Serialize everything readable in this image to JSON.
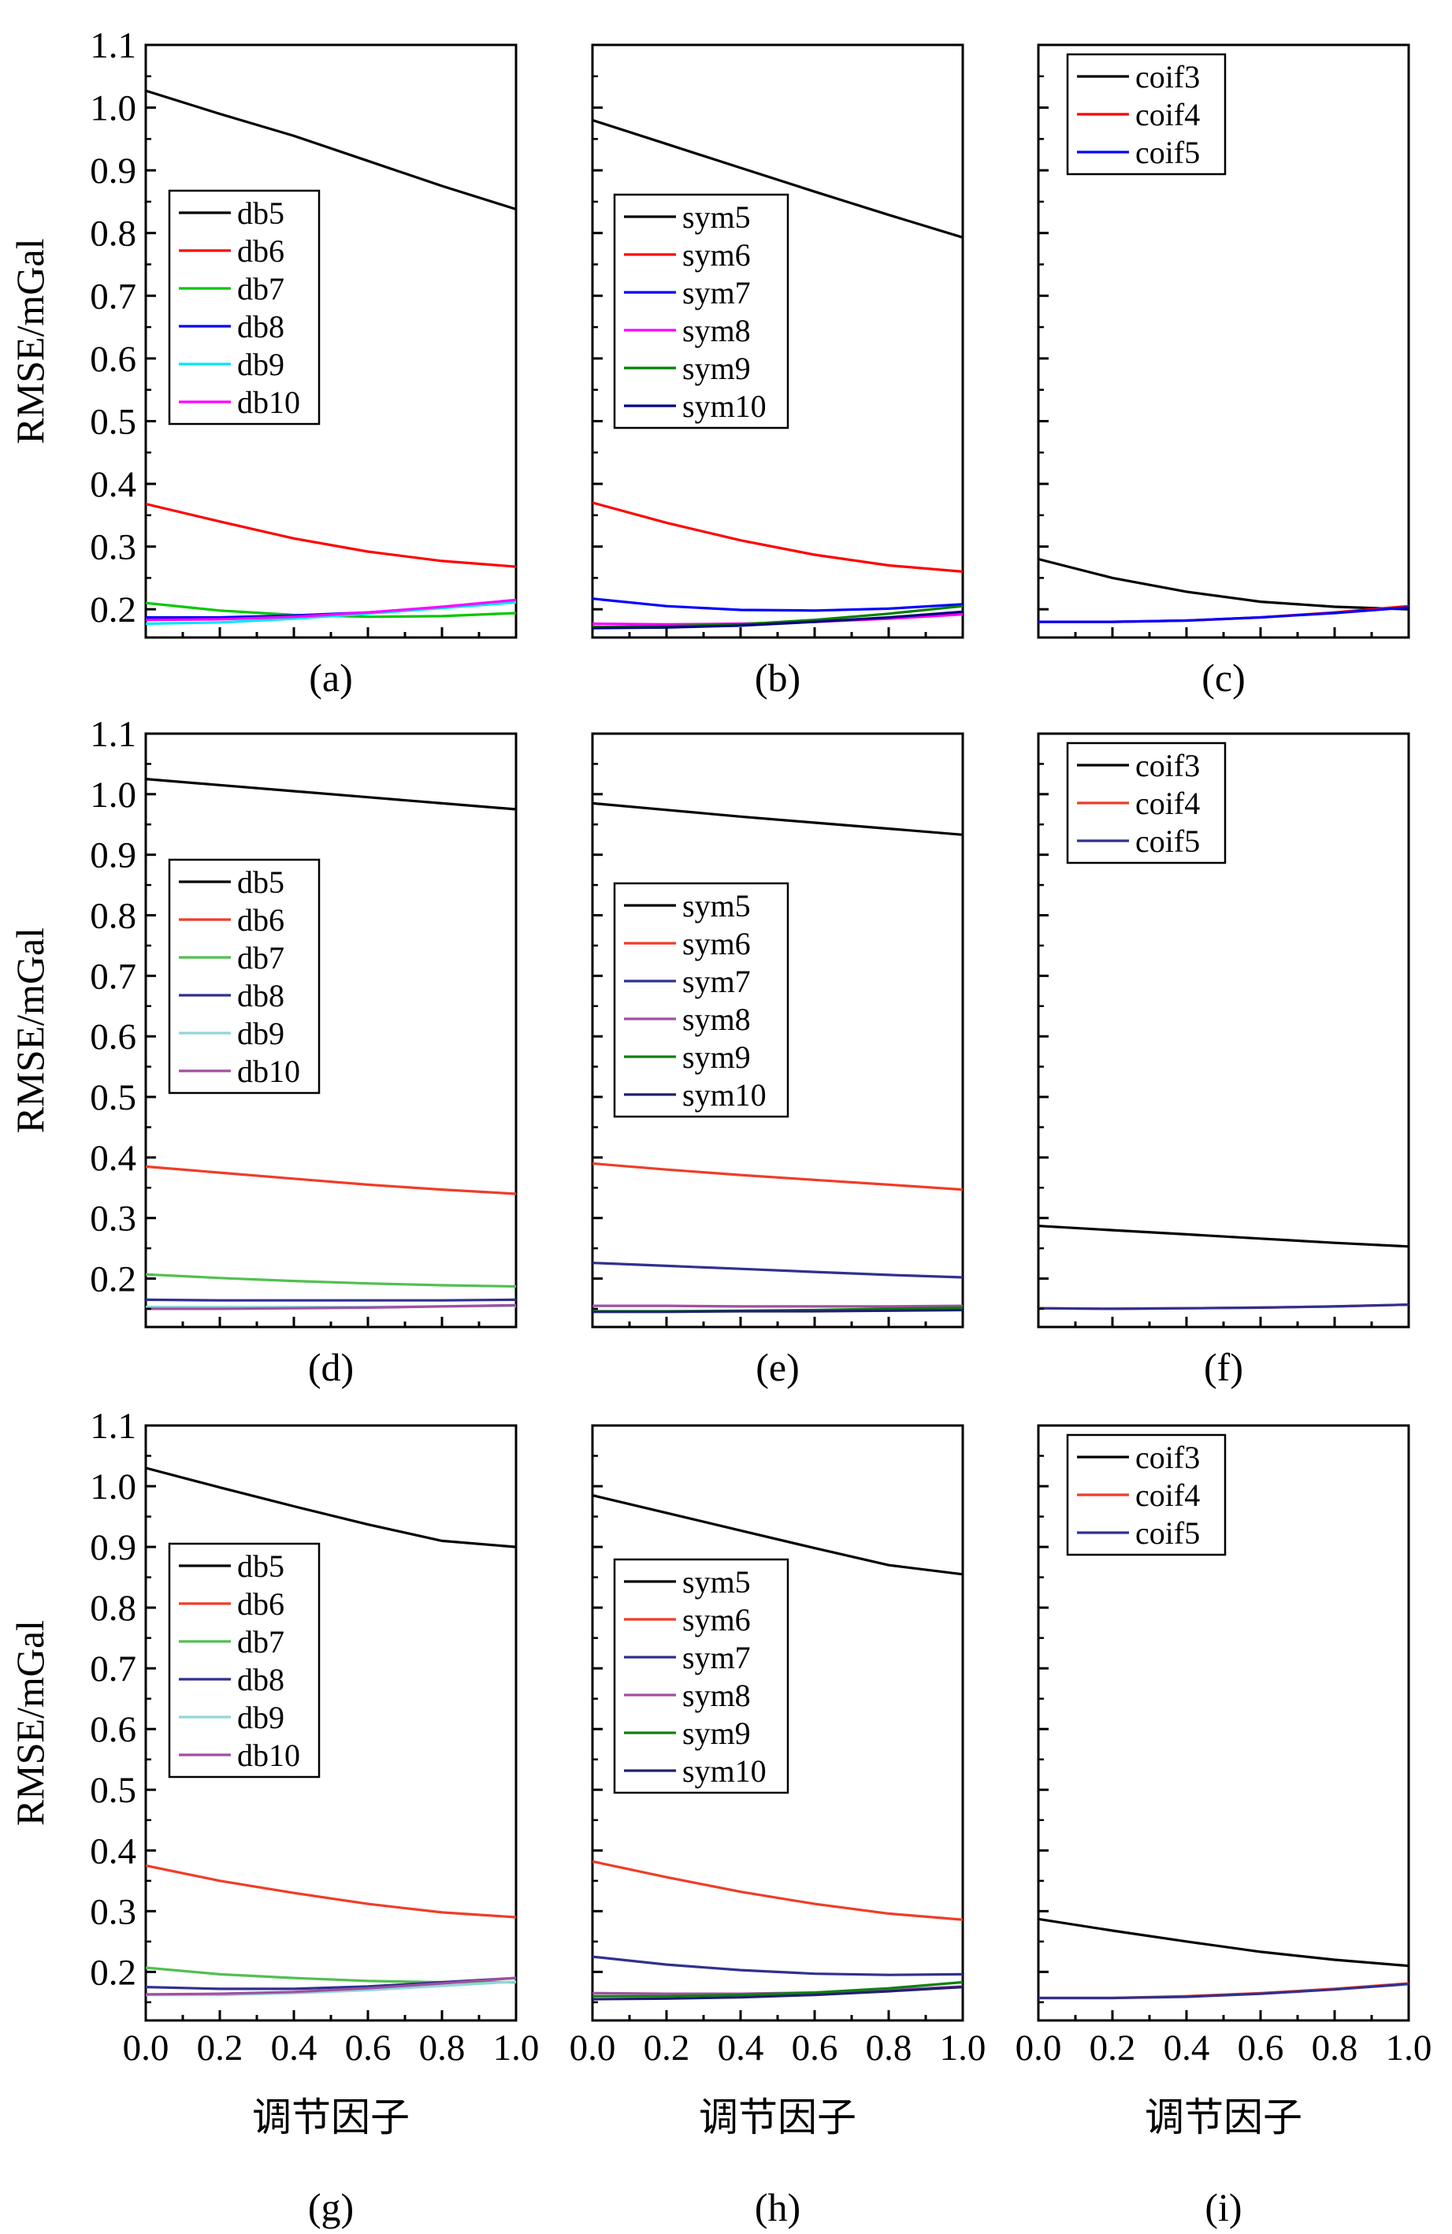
{
  "chart_data": [
    {
      "id": "a",
      "type": "line",
      "title": "(a)",
      "xlabel": "",
      "ylabel": "RMSE/mGal",
      "xlim": [
        0,
        1
      ],
      "ylim": [
        0.155,
        1.1
      ],
      "x": [
        0,
        0.2,
        0.4,
        0.6,
        0.8,
        1.0
      ],
      "series": [
        {
          "name": "db5",
          "color": "#000000",
          "values": [
            1.027,
            0.99,
            0.955,
            0.915,
            0.875,
            0.838
          ]
        },
        {
          "name": "db6",
          "color": "#ff0000",
          "values": [
            0.368,
            0.34,
            0.313,
            0.292,
            0.277,
            0.268
          ]
        },
        {
          "name": "db7",
          "color": "#00c800",
          "values": [
            0.21,
            0.198,
            0.191,
            0.188,
            0.189,
            0.194
          ]
        },
        {
          "name": "db8",
          "color": "#0000ff",
          "values": [
            0.187,
            0.187,
            0.19,
            0.195,
            0.203,
            0.213
          ]
        },
        {
          "name": "db9",
          "color": "#00e5ff",
          "values": [
            0.177,
            0.179,
            0.185,
            0.193,
            0.202,
            0.211
          ]
        },
        {
          "name": "db10",
          "color": "#ff00ff",
          "values": [
            0.183,
            0.184,
            0.188,
            0.195,
            0.204,
            0.215
          ]
        }
      ]
    },
    {
      "id": "b",
      "type": "line",
      "title": "(b)",
      "xlabel": "",
      "ylabel": "",
      "xlim": [
        0,
        1
      ],
      "ylim": [
        0.155,
        1.1
      ],
      "x": [
        0,
        0.2,
        0.4,
        0.6,
        0.8,
        1.0
      ],
      "series": [
        {
          "name": "sym5",
          "color": "#000000",
          "values": [
            0.98,
            0.942,
            0.904,
            0.866,
            0.829,
            0.793
          ]
        },
        {
          "name": "sym6",
          "color": "#ff0000",
          "values": [
            0.37,
            0.338,
            0.31,
            0.287,
            0.27,
            0.26
          ]
        },
        {
          "name": "sym7",
          "color": "#0000ff",
          "values": [
            0.217,
            0.205,
            0.199,
            0.198,
            0.201,
            0.208
          ]
        },
        {
          "name": "sym8",
          "color": "#ff00ff",
          "values": [
            0.177,
            0.176,
            0.177,
            0.18,
            0.185,
            0.192
          ]
        },
        {
          "name": "sym9",
          "color": "#008000",
          "values": [
            0.172,
            0.173,
            0.176,
            0.183,
            0.193,
            0.205
          ]
        },
        {
          "name": "sym10",
          "color": "#000080",
          "values": [
            0.17,
            0.171,
            0.174,
            0.18,
            0.187,
            0.196
          ]
        }
      ]
    },
    {
      "id": "c",
      "type": "line",
      "title": "(c)",
      "xlabel": "",
      "ylabel": "",
      "xlim": [
        0,
        1
      ],
      "ylim": [
        0.155,
        1.1
      ],
      "x": [
        0,
        0.2,
        0.4,
        0.6,
        0.8,
        1.0
      ],
      "series": [
        {
          "name": "coif3",
          "color": "#000000",
          "values": [
            0.28,
            0.25,
            0.228,
            0.212,
            0.204,
            0.2
          ]
        },
        {
          "name": "coif4",
          "color": "#ff0000",
          "values": [
            0.18,
            0.18,
            0.182,
            0.187,
            0.195,
            0.205
          ]
        },
        {
          "name": "coif5",
          "color": "#0000ff",
          "values": [
            0.18,
            0.18,
            0.182,
            0.187,
            0.194,
            0.203
          ]
        }
      ]
    },
    {
      "id": "d",
      "type": "line",
      "title": "(d)",
      "xlabel": "",
      "ylabel": "RMSE/mGal",
      "xlim": [
        0,
        1
      ],
      "ylim": [
        0.12,
        1.1
      ],
      "x": [
        0,
        0.2,
        0.4,
        0.6,
        0.8,
        1.0
      ],
      "series": [
        {
          "name": "db5",
          "color": "#000000",
          "values": [
            1.025,
            1.015,
            1.005,
            0.995,
            0.985,
            0.975
          ]
        },
        {
          "name": "db6",
          "color": "#f03c28",
          "values": [
            0.385,
            0.375,
            0.365,
            0.355,
            0.347,
            0.34
          ]
        },
        {
          "name": "db7",
          "color": "#50c050",
          "values": [
            0.207,
            0.201,
            0.196,
            0.192,
            0.189,
            0.187
          ]
        },
        {
          "name": "db8",
          "color": "#303090",
          "values": [
            0.165,
            0.164,
            0.164,
            0.164,
            0.164,
            0.165
          ]
        },
        {
          "name": "db9",
          "color": "#90d8d8",
          "values": [
            0.153,
            0.153,
            0.153,
            0.153,
            0.154,
            0.155
          ]
        },
        {
          "name": "db10",
          "color": "#a050a0",
          "values": [
            0.15,
            0.15,
            0.151,
            0.152,
            0.154,
            0.156
          ]
        }
      ]
    },
    {
      "id": "e",
      "type": "line",
      "title": "(e)",
      "xlabel": "",
      "ylabel": "",
      "xlim": [
        0,
        1
      ],
      "ylim": [
        0.12,
        1.1
      ],
      "x": [
        0,
        0.2,
        0.4,
        0.6,
        0.8,
        1.0
      ],
      "series": [
        {
          "name": "sym5",
          "color": "#000000",
          "values": [
            0.985,
            0.974,
            0.963,
            0.953,
            0.943,
            0.933
          ]
        },
        {
          "name": "sym6",
          "color": "#f03c28",
          "values": [
            0.39,
            0.38,
            0.371,
            0.363,
            0.355,
            0.347
          ]
        },
        {
          "name": "sym7",
          "color": "#303090",
          "values": [
            0.226,
            0.221,
            0.216,
            0.211,
            0.206,
            0.202
          ]
        },
        {
          "name": "sym8",
          "color": "#a050a0",
          "values": [
            0.155,
            0.155,
            0.154,
            0.154,
            0.154,
            0.155
          ]
        },
        {
          "name": "sym9",
          "color": "#108010",
          "values": [
            0.146,
            0.146,
            0.147,
            0.148,
            0.15,
            0.152
          ]
        },
        {
          "name": "sym10",
          "color": "#202070",
          "values": [
            0.145,
            0.145,
            0.146,
            0.146,
            0.147,
            0.148
          ]
        }
      ]
    },
    {
      "id": "f",
      "type": "line",
      "title": "(f)",
      "xlabel": "",
      "ylabel": "",
      "xlim": [
        0,
        1
      ],
      "ylim": [
        0.12,
        1.1
      ],
      "x": [
        0,
        0.2,
        0.4,
        0.6,
        0.8,
        1.0
      ],
      "series": [
        {
          "name": "coif3",
          "color": "#000000",
          "values": [
            0.287,
            0.28,
            0.273,
            0.266,
            0.259,
            0.253
          ]
        },
        {
          "name": "coif4",
          "color": "#f03c28",
          "values": [
            0.151,
            0.15,
            0.151,
            0.152,
            0.154,
            0.157
          ]
        },
        {
          "name": "coif5",
          "color": "#303090",
          "values": [
            0.151,
            0.15,
            0.151,
            0.152,
            0.154,
            0.157
          ]
        }
      ]
    },
    {
      "id": "g",
      "type": "line",
      "title": "(g)",
      "xlabel": "调节因子",
      "ylabel": "RMSE/mGal",
      "xlim": [
        0,
        1
      ],
      "ylim": [
        0.12,
        1.1
      ],
      "x": [
        0,
        0.2,
        0.4,
        0.6,
        0.8,
        1.0
      ],
      "series": [
        {
          "name": "db5",
          "color": "#000000",
          "values": [
            1.03,
            0.998,
            0.967,
            0.937,
            0.91,
            0.9
          ]
        },
        {
          "name": "db6",
          "color": "#f03c28",
          "values": [
            0.375,
            0.35,
            0.33,
            0.312,
            0.298,
            0.29
          ]
        },
        {
          "name": "db7",
          "color": "#50c050",
          "values": [
            0.207,
            0.196,
            0.19,
            0.185,
            0.183,
            0.183
          ]
        },
        {
          "name": "db8",
          "color": "#303090",
          "values": [
            0.175,
            0.172,
            0.172,
            0.176,
            0.183,
            0.19
          ]
        },
        {
          "name": "db9",
          "color": "#90d8d8",
          "values": [
            0.162,
            0.162,
            0.165,
            0.17,
            0.177,
            0.184
          ]
        },
        {
          "name": "db10",
          "color": "#a050a0",
          "values": [
            0.163,
            0.164,
            0.167,
            0.173,
            0.181,
            0.19
          ]
        }
      ]
    },
    {
      "id": "h",
      "type": "line",
      "title": "(h)",
      "xlabel": "调节因子",
      "ylabel": "",
      "xlim": [
        0,
        1
      ],
      "ylim": [
        0.12,
        1.1
      ],
      "x": [
        0,
        0.2,
        0.4,
        0.6,
        0.8,
        1.0
      ],
      "series": [
        {
          "name": "sym5",
          "color": "#000000",
          "values": [
            0.985,
            0.956,
            0.927,
            0.898,
            0.87,
            0.855
          ]
        },
        {
          "name": "sym6",
          "color": "#f03c28",
          "values": [
            0.382,
            0.356,
            0.332,
            0.312,
            0.296,
            0.286
          ]
        },
        {
          "name": "sym7",
          "color": "#303090",
          "values": [
            0.225,
            0.212,
            0.203,
            0.197,
            0.195,
            0.196
          ]
        },
        {
          "name": "sym8",
          "color": "#a050a0",
          "values": [
            0.165,
            0.164,
            0.164,
            0.166,
            0.17,
            0.176
          ]
        },
        {
          "name": "sym9",
          "color": "#108010",
          "values": [
            0.16,
            0.16,
            0.162,
            0.166,
            0.173,
            0.183
          ]
        },
        {
          "name": "sym10",
          "color": "#202070",
          "values": [
            0.155,
            0.156,
            0.158,
            0.162,
            0.168,
            0.175
          ]
        }
      ]
    },
    {
      "id": "i",
      "type": "line",
      "title": "(i)",
      "xlabel": "调节因子",
      "ylabel": "",
      "xlim": [
        0,
        1
      ],
      "ylim": [
        0.12,
        1.1
      ],
      "x": [
        0,
        0.2,
        0.4,
        0.6,
        0.8,
        1.0
      ],
      "series": [
        {
          "name": "coif3",
          "color": "#000000",
          "values": [
            0.287,
            0.268,
            0.25,
            0.233,
            0.22,
            0.21
          ]
        },
        {
          "name": "coif4",
          "color": "#f03c28",
          "values": [
            0.157,
            0.157,
            0.16,
            0.165,
            0.172,
            0.181
          ]
        },
        {
          "name": "coif5",
          "color": "#303090",
          "values": [
            0.157,
            0.157,
            0.159,
            0.164,
            0.171,
            0.18
          ]
        }
      ]
    }
  ],
  "axes": {
    "y_tick_labels": [
      "0.2",
      "0.3",
      "0.4",
      "0.5",
      "0.6",
      "0.7",
      "0.8",
      "0.9",
      "1.0",
      "1.1"
    ],
    "x_tick_labels": [
      "0.0",
      "0.2",
      "0.4",
      "0.6",
      "0.8",
      "1.0"
    ]
  }
}
